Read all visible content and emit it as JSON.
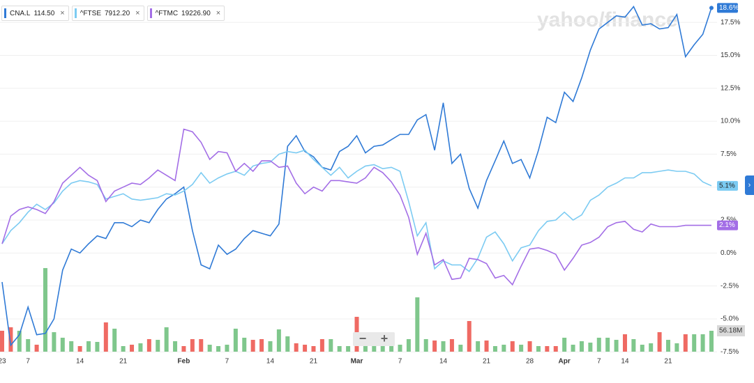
{
  "chart_data": {
    "type": "line",
    "watermark": "yahoo/finance",
    "zoom_controls": [
      "−",
      "+"
    ],
    "categories": [
      "23",
      null,
      null,
      "7",
      null,
      null,
      null,
      null,
      null,
      "14",
      null,
      null,
      null,
      null,
      "21",
      null,
      null,
      null,
      null,
      null,
      null,
      "Feb",
      null,
      null,
      null,
      null,
      "7",
      null,
      null,
      null,
      null,
      "14",
      null,
      null,
      null,
      null,
      "21",
      null,
      null,
      null,
      null,
      "Mar",
      null,
      null,
      null,
      null,
      "7",
      null,
      null,
      null,
      null,
      "14",
      null,
      null,
      null,
      null,
      "21",
      null,
      null,
      null,
      null,
      "28",
      null,
      null,
      null,
      "Apr",
      null,
      null,
      null,
      "7",
      null,
      null,
      "14",
      null,
      null,
      null,
      null,
      "21",
      null,
      null,
      null,
      null,
      null
    ],
    "ylim": [
      -7.75,
      19.2
    ],
    "yticks": [
      {
        "value": 17.5,
        "label": "17.5%"
      },
      {
        "value": 15,
        "label": "15.0%"
      },
      {
        "value": 12.5,
        "label": "12.5%"
      },
      {
        "value": 10,
        "label": "10.0%"
      },
      {
        "value": 7.5,
        "label": "7.5%"
      },
      {
        "value": 5,
        "label": "5.0%"
      },
      {
        "value": 2.5,
        "label": "2.5%"
      },
      {
        "value": 0,
        "label": "0.0%"
      },
      {
        "value": -2.5,
        "label": "-2.5%"
      },
      {
        "value": -5,
        "label": "-5.0%"
      },
      {
        "value": -7.5,
        "label": "-7.5%"
      }
    ],
    "grid": true,
    "series": [
      {
        "name": "CNA.L",
        "quote": "114.50",
        "color": "#2f7ad6",
        "last_label": "18.6%",
        "values": [
          -2.2,
          -7.0,
          -6.2,
          -4.1,
          -6.2,
          -6.1,
          -5.0,
          -1.3,
          0.3,
          0.0,
          0.7,
          1.3,
          1.1,
          2.3,
          2.3,
          2.0,
          2.5,
          2.3,
          3.3,
          4.1,
          4.5,
          5.0,
          1.7,
          -0.9,
          -1.2,
          0.6,
          -0.1,
          0.3,
          1.1,
          1.7,
          1.5,
          1.3,
          2.2,
          8.1,
          8.9,
          7.7,
          7.3,
          6.5,
          6.3,
          7.7,
          8.1,
          8.9,
          7.6,
          8.1,
          8.2,
          8.6,
          9.0,
          9.0,
          10.1,
          10.5,
          7.8,
          11.4,
          6.8,
          7.5,
          4.9,
          3.4,
          5.5,
          7.0,
          8.5,
          6.8,
          7.1,
          5.7,
          7.8,
          10.3,
          9.9,
          12.2,
          11.5,
          13.3,
          15.4,
          17.0,
          17.5,
          18.0,
          17.9,
          18.7,
          17.3,
          17.4,
          17.0,
          17.1,
          18.1,
          14.9,
          15.8,
          16.6,
          18.6
        ]
      },
      {
        "name": "^FTSE",
        "quote": "7912.20",
        "color": "#7ccbf2",
        "last_label": "5.1%",
        "values": [
          0.7,
          1.7,
          2.3,
          3.1,
          3.7,
          3.3,
          3.8,
          4.7,
          5.3,
          5.5,
          5.4,
          5.2,
          4.1,
          4.3,
          4.5,
          4.1,
          4.0,
          4.1,
          4.2,
          4.5,
          4.4,
          4.7,
          5.2,
          6.1,
          5.3,
          5.7,
          6.0,
          6.2,
          5.9,
          6.6,
          6.8,
          6.9,
          7.5,
          7.7,
          7.6,
          7.8,
          7.1,
          6.5,
          5.9,
          6.5,
          5.7,
          6.2,
          6.6,
          6.7,
          6.4,
          6.5,
          6.2,
          3.9,
          1.3,
          2.3,
          -1.2,
          -0.6,
          -0.9,
          -0.9,
          -1.4,
          -0.4,
          1.2,
          1.6,
          0.7,
          -0.6,
          0.4,
          0.6,
          1.7,
          2.4,
          2.5,
          3.1,
          2.5,
          2.9,
          4.0,
          4.4,
          5.0,
          5.3,
          5.7,
          5.7,
          6.1,
          6.1,
          6.2,
          6.3,
          6.2,
          6.2,
          6.0,
          5.4,
          5.1
        ]
      },
      {
        "name": "^FTMC",
        "quote": "19226.90",
        "color": "#a36ee6",
        "last_label": "2.1%",
        "values": [
          0.7,
          2.8,
          3.3,
          3.5,
          3.3,
          3.0,
          3.9,
          5.3,
          5.9,
          6.5,
          5.9,
          5.5,
          3.9,
          4.7,
          5.0,
          5.3,
          5.2,
          5.7,
          6.3,
          5.9,
          5.5,
          9.4,
          9.2,
          8.4,
          7.1,
          7.7,
          7.6,
          6.2,
          6.8,
          6.2,
          7.0,
          7.0,
          6.5,
          6.6,
          5.3,
          4.5,
          5.0,
          4.7,
          5.5,
          5.5,
          5.4,
          5.3,
          5.7,
          6.5,
          6.1,
          5.4,
          4.4,
          2.7,
          -0.1,
          1.5,
          -0.9,
          -0.5,
          -2.0,
          -1.9,
          -0.4,
          -0.5,
          -0.8,
          -1.9,
          -1.7,
          -2.4,
          -1.0,
          0.3,
          0.4,
          0.2,
          -0.1,
          -1.3,
          -0.4,
          0.6,
          0.8,
          1.2,
          2.0,
          2.3,
          2.4,
          1.8,
          1.6,
          2.2,
          2.0,
          2.0,
          2.0,
          2.1,
          2.1,
          2.1,
          2.1
        ]
      }
    ],
    "volume": {
      "ylim": [
        0,
        500
      ],
      "last_label": "56.18M",
      "values": [
        56.2,
        65.6,
        56.2,
        33.7,
        18.7,
        224.8,
        52.4,
        37.5,
        28.1,
        15.0,
        28.1,
        26.2,
        78.7,
        61.8,
        15.0,
        18.7,
        22.5,
        33.7,
        31.8,
        65.6,
        28.1,
        15.0,
        33.7,
        33.7,
        18.7,
        15.0,
        18.7,
        61.8,
        37.5,
        31.8,
        33.7,
        28.1,
        59.9,
        41.2,
        22.5,
        18.7,
        15.0,
        33.7,
        33.7,
        15.0,
        15.0,
        93.7,
        18.7,
        15.0,
        15.0,
        15.0,
        18.7,
        33.7,
        146.1,
        33.7,
        30.0,
        28.1,
        33.7,
        18.7,
        82.4,
        28.1,
        30.0,
        15.0,
        18.7,
        28.1,
        18.7,
        28.1,
        15.0,
        15.0,
        15.0,
        37.5,
        18.7,
        28.1,
        24.3,
        37.5,
        37.5,
        31.8,
        46.8,
        33.7,
        18.7,
        22.5,
        52.4,
        31.8,
        22.5,
        46.8,
        46.8,
        46.8,
        56.18
      ],
      "colors": [
        "#ef6a63",
        "#ef6a63",
        "#7fc78c",
        "#7fc78c",
        "#ef6a63",
        "#7fc78c",
        "#7fc78c",
        "#7fc78c",
        "#7fc78c",
        "#ef6a63",
        "#7fc78c",
        "#7fc78c",
        "#ef6a63",
        "#7fc78c",
        "#7fc78c",
        "#ef6a63",
        "#7fc78c",
        "#ef6a63",
        "#7fc78c",
        "#7fc78c",
        "#7fc78c",
        "#ef6a63",
        "#ef6a63",
        "#ef6a63",
        "#7fc78c",
        "#7fc78c",
        "#7fc78c",
        "#7fc78c",
        "#7fc78c",
        "#ef6a63",
        "#ef6a63",
        "#7fc78c",
        "#7fc78c",
        "#7fc78c",
        "#ef6a63",
        "#ef6a63",
        "#ef6a63",
        "#ef6a63",
        "#7fc78c",
        "#7fc78c",
        "#7fc78c",
        "#ef6a63",
        "#7fc78c",
        "#7fc78c",
        "#7fc78c",
        "#7fc78c",
        "#7fc78c",
        "#7fc78c",
        "#7fc78c",
        "#7fc78c",
        "#ef6a63",
        "#7fc78c",
        "#ef6a63",
        "#7fc78c",
        "#ef6a63",
        "#7fc78c",
        "#ef6a63",
        "#7fc78c",
        "#7fc78c",
        "#ef6a63",
        "#7fc78c",
        "#ef6a63",
        "#7fc78c",
        "#ef6a63",
        "#ef6a63",
        "#7fc78c",
        "#7fc78c",
        "#7fc78c",
        "#7fc78c",
        "#7fc78c",
        "#7fc78c",
        "#7fc78c",
        "#ef6a63",
        "#7fc78c",
        "#7fc78c",
        "#7fc78c",
        "#ef6a63",
        "#7fc78c",
        "#7fc78c",
        "#ef6a63",
        "#7fc78c",
        "#7fc78c",
        "#7fc78c"
      ]
    }
  }
}
